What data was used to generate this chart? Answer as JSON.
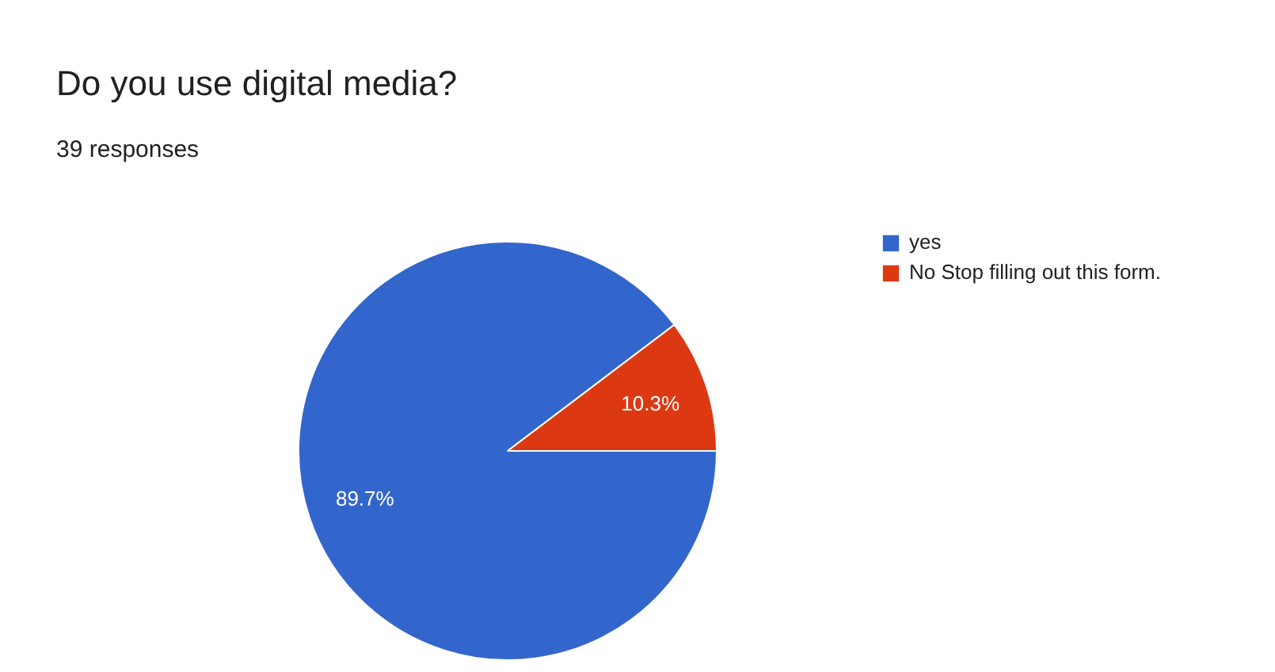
{
  "chart_data": {
    "type": "pie",
    "title": "Do you use digital media?",
    "subtitle": "39 responses",
    "categories": [
      "yes",
      "No Stop filling out this form."
    ],
    "values": [
      89.7,
      10.3
    ],
    "colors": [
      "#3366cc",
      "#dc3912"
    ],
    "value_labels": [
      "89.7%",
      "10.3%"
    ],
    "legend": "right"
  }
}
